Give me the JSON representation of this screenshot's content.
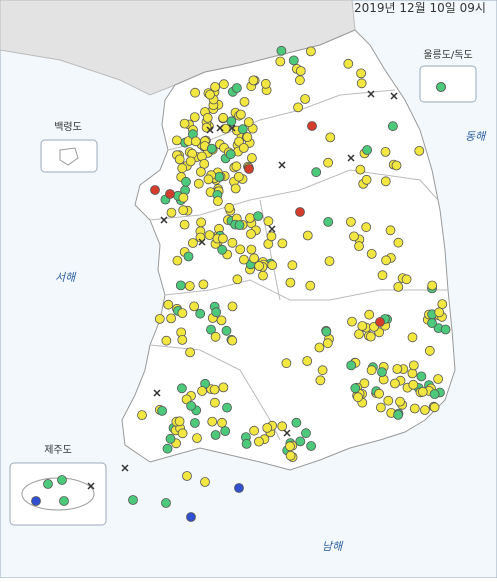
{
  "header": {
    "timestamp": "2019년 12월 10일 09시"
  },
  "insets": {
    "ulleung": "울릉도/독도",
    "baengnyeong": "백령도",
    "jeju": "제주도"
  },
  "seas": {
    "east": "동해",
    "west": "서해",
    "south": "남해"
  }
}
